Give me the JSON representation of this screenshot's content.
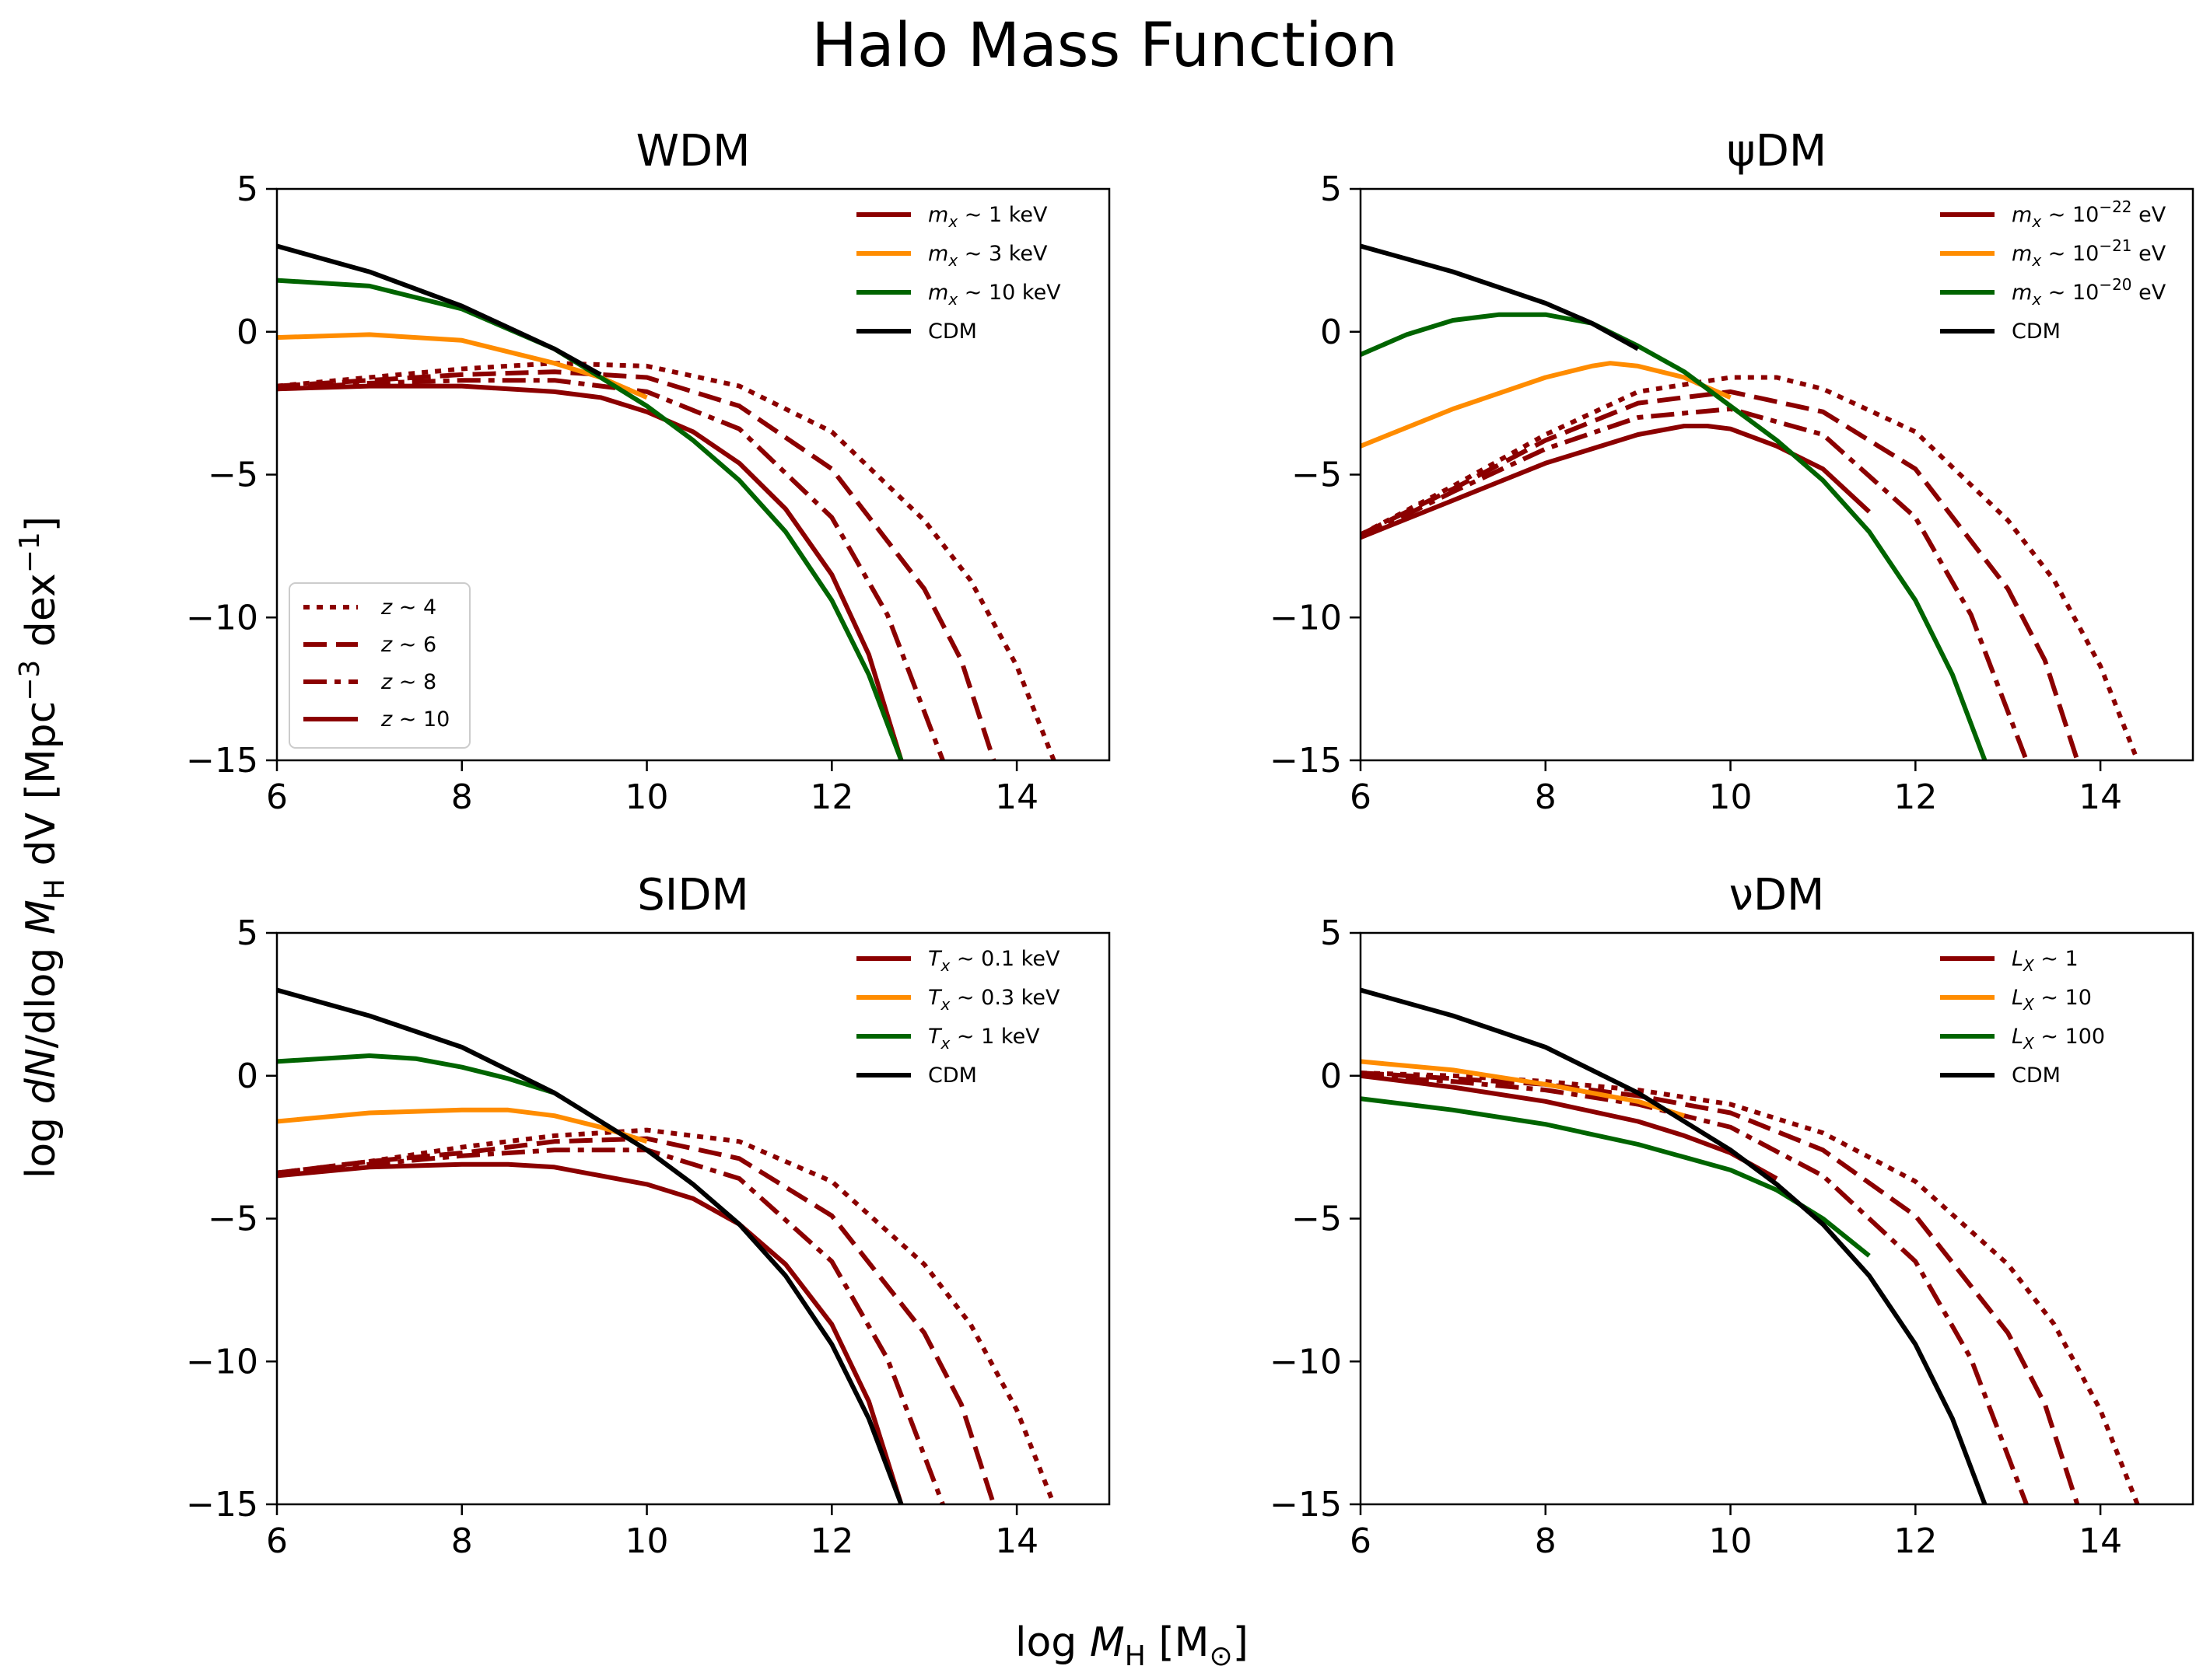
{
  "figure_title": "Halo Mass Function",
  "ylabel": "log dN/dlog M_H dV [Mpc^-3 dex^-1]",
  "xlabel": "log M_H [M_⊙]",
  "colors": {
    "red": "#8b0000",
    "orange": "#ff8c00",
    "green": "#006400",
    "black": "#000000"
  },
  "chart_data": [
    {
      "type": "line",
      "title": "WDM",
      "xlim": [
        6,
        15
      ],
      "ylim": [
        -15,
        5
      ],
      "xticks": [
        "6",
        "8",
        "10",
        "12",
        "14"
      ],
      "yticks": [
        "5",
        "0",
        "−5",
        "−10",
        "−15"
      ],
      "legend_placement": "upper right",
      "legend": [
        "m_x ~ 1 keV",
        "m_x ~ 3 keV",
        "m_x ~ 10 keV",
        "CDM"
      ],
      "redshift_legend_placement": "lower left",
      "redshift_legend": [
        "z ~ 4",
        "z ~ 6",
        "z ~ 8",
        "z ~ 10"
      ],
      "series": [
        {
          "name": "m_x ~ 1 keV",
          "z": "4",
          "color": "red",
          "style": "dotted",
          "x": [
            6,
            7,
            8,
            9,
            10,
            11,
            12,
            13,
            13.5,
            14,
            14.4
          ],
          "y": [
            -1.9,
            -1.6,
            -1.3,
            -1.1,
            -1.2,
            -1.9,
            -3.5,
            -6.6,
            -8.7,
            -11.7,
            -15
          ]
        },
        {
          "name": "m_x ~ 1 keV",
          "z": "6",
          "color": "red",
          "style": "dashed",
          "x": [
            6,
            7,
            8,
            9,
            10,
            11,
            12,
            13,
            13.4,
            13.75
          ],
          "y": [
            -1.9,
            -1.7,
            -1.5,
            -1.4,
            -1.6,
            -2.6,
            -4.8,
            -9.0,
            -11.5,
            -15
          ]
        },
        {
          "name": "m_x ~ 1 keV",
          "z": "8",
          "color": "red",
          "style": "dashdot",
          "x": [
            6,
            7,
            8,
            9,
            10,
            11,
            12,
            12.6,
            13.2
          ],
          "y": [
            -2.0,
            -1.8,
            -1.7,
            -1.7,
            -2.1,
            -3.4,
            -6.5,
            -9.9,
            -15
          ]
        },
        {
          "name": "m_x ~ 1 keV",
          "z": "10",
          "color": "red",
          "style": "solid",
          "x": [
            6,
            7,
            8,
            9,
            9.5,
            10,
            10.5,
            11,
            11.5,
            12,
            12.4,
            12.75
          ],
          "y": [
            -2.0,
            -1.9,
            -1.9,
            -2.1,
            -2.3,
            -2.8,
            -3.5,
            -4.6,
            -6.2,
            -8.5,
            -11.3,
            -15
          ]
        },
        {
          "name": "m_x ~ 3 keV",
          "z": "10",
          "color": "orange",
          "style": "solid",
          "x": [
            6,
            7,
            8,
            9,
            9.5,
            10
          ],
          "y": [
            -0.2,
            -0.1,
            -0.3,
            -1.1,
            -1.6,
            -2.3
          ]
        },
        {
          "name": "m_x ~ 10 keV",
          "z": "10",
          "color": "green",
          "style": "solid",
          "x": [
            6,
            7,
            8,
            9,
            10,
            10.5,
            11,
            11.5,
            12,
            12.4,
            12.75
          ],
          "y": [
            1.8,
            1.6,
            0.8,
            -0.6,
            -2.6,
            -3.8,
            -5.2,
            -7.0,
            -9.4,
            -12.0,
            -15
          ]
        },
        {
          "name": "CDM",
          "z": "10",
          "color": "black",
          "style": "solid",
          "x": [
            6,
            7,
            8,
            9,
            9.5
          ],
          "y": [
            3.0,
            2.1,
            0.9,
            -0.6,
            -1.5
          ]
        }
      ]
    },
    {
      "type": "line",
      "title": "ψDM",
      "xlim": [
        6,
        15
      ],
      "ylim": [
        -15,
        5
      ],
      "xticks": [
        "6",
        "8",
        "10",
        "12",
        "14"
      ],
      "yticks": [
        "5",
        "0",
        "−5",
        "−10",
        "−15"
      ],
      "legend_placement": "upper right",
      "legend": [
        "m_x ~ 10^-22 eV",
        "m_x ~ 10^-21 eV",
        "m_x ~ 10^-20 eV",
        "CDM"
      ],
      "series": [
        {
          "name": "m_x ~ 10^-22 eV",
          "z": "4",
          "color": "red",
          "style": "dotted",
          "x": [
            6,
            7,
            8,
            9,
            10,
            10.5,
            11,
            12,
            13,
            13.5,
            14,
            14.4
          ],
          "y": [
            -7.1,
            -5.4,
            -3.6,
            -2.1,
            -1.6,
            -1.6,
            -2.0,
            -3.5,
            -6.6,
            -8.7,
            -11.7,
            -15
          ]
        },
        {
          "name": "m_x ~ 10^-22 eV",
          "z": "6",
          "color": "red",
          "style": "dashed",
          "x": [
            6,
            7,
            8,
            9,
            10,
            11,
            12,
            13,
            13.4,
            13.75
          ],
          "y": [
            -7.1,
            -5.5,
            -3.8,
            -2.5,
            -2.1,
            -2.8,
            -4.8,
            -9.0,
            -11.5,
            -15
          ]
        },
        {
          "name": "m_x ~ 10^-22 eV",
          "z": "8",
          "color": "red",
          "style": "dashdot",
          "x": [
            6,
            7,
            8,
            9,
            10,
            11,
            12,
            12.6,
            13.2
          ],
          "y": [
            -7.2,
            -5.6,
            -4.1,
            -3.0,
            -2.7,
            -3.6,
            -6.5,
            -9.9,
            -15
          ]
        },
        {
          "name": "m_x ~ 10^-22 eV",
          "z": "10",
          "color": "red",
          "style": "solid",
          "x": [
            6,
            7,
            8,
            9,
            9.5,
            9.75,
            10,
            10.5,
            11,
            11.5
          ],
          "y": [
            -7.2,
            -5.9,
            -4.6,
            -3.6,
            -3.3,
            -3.3,
            -3.4,
            -4.0,
            -4.8,
            -6.3
          ]
        },
        {
          "name": "m_x ~ 10^-21 eV",
          "z": "10",
          "color": "orange",
          "style": "solid",
          "x": [
            6,
            7,
            8,
            8.5,
            8.7,
            9,
            9.5,
            10
          ],
          "y": [
            -4.0,
            -2.7,
            -1.6,
            -1.2,
            -1.1,
            -1.2,
            -1.6,
            -2.3
          ]
        },
        {
          "name": "m_x ~ 10^-20 eV",
          "z": "10",
          "color": "green",
          "style": "solid",
          "x": [
            6,
            6.5,
            7,
            7.5,
            8,
            8.5,
            9,
            9.5,
            10,
            10.5,
            11,
            11.5,
            12,
            12.4,
            12.75
          ],
          "y": [
            -0.8,
            -0.1,
            0.4,
            0.6,
            0.6,
            0.3,
            -0.5,
            -1.4,
            -2.6,
            -3.8,
            -5.2,
            -7.0,
            -9.4,
            -12.0,
            -15
          ]
        },
        {
          "name": "CDM",
          "z": "10",
          "color": "black",
          "style": "solid",
          "x": [
            6,
            7,
            8,
            8.5,
            9
          ],
          "y": [
            3.0,
            2.1,
            1.0,
            0.3,
            -0.6
          ]
        }
      ]
    },
    {
      "type": "line",
      "title": "SIDM",
      "xlim": [
        6,
        15
      ],
      "ylim": [
        -15,
        5
      ],
      "xticks": [
        "6",
        "8",
        "10",
        "12",
        "14"
      ],
      "yticks": [
        "5",
        "0",
        "−5",
        "−10",
        "−15"
      ],
      "legend_placement": "upper right",
      "legend": [
        "T_x ~ 0.1 keV",
        "T_x ~ 0.3 keV",
        "T_x ~ 1 keV",
        "CDM"
      ],
      "series": [
        {
          "name": "T_x ~ 0.1 keV",
          "z": "4",
          "color": "red",
          "style": "dotted",
          "x": [
            6,
            7,
            8,
            9,
            10,
            11,
            12,
            13,
            13.5,
            14,
            14.4
          ],
          "y": [
            -3.4,
            -3.0,
            -2.5,
            -2.1,
            -1.9,
            -2.3,
            -3.7,
            -6.6,
            -8.7,
            -11.7,
            -15
          ]
        },
        {
          "name": "T_x ~ 0.1 keV",
          "z": "6",
          "color": "red",
          "style": "dashed",
          "x": [
            6,
            7,
            8,
            9,
            10,
            11,
            12,
            13,
            13.4,
            13.75
          ],
          "y": [
            -3.4,
            -3.0,
            -2.7,
            -2.3,
            -2.2,
            -2.9,
            -4.9,
            -9.0,
            -11.5,
            -15
          ]
        },
        {
          "name": "T_x ~ 0.1 keV",
          "z": "8",
          "color": "red",
          "style": "dashdot",
          "x": [
            6,
            7,
            8,
            9,
            10,
            11,
            12,
            12.6,
            13.2
          ],
          "y": [
            -3.4,
            -3.1,
            -2.8,
            -2.6,
            -2.6,
            -3.6,
            -6.5,
            -9.9,
            -15
          ]
        },
        {
          "name": "T_x ~ 0.1 keV",
          "z": "10",
          "color": "red",
          "style": "solid",
          "x": [
            6,
            7,
            8,
            8.5,
            9,
            10,
            10.5,
            11,
            11.5,
            12,
            12.4,
            12.75
          ],
          "y": [
            -3.5,
            -3.2,
            -3.1,
            -3.1,
            -3.2,
            -3.8,
            -4.3,
            -5.2,
            -6.6,
            -8.7,
            -11.4,
            -15
          ]
        },
        {
          "name": "T_x ~ 0.3 keV",
          "z": "10",
          "color": "orange",
          "style": "solid",
          "x": [
            6,
            7,
            8,
            8.5,
            9,
            9.5,
            10
          ],
          "y": [
            -1.6,
            -1.3,
            -1.2,
            -1.2,
            -1.4,
            -1.8,
            -2.3
          ]
        },
        {
          "name": "T_x ~ 1 keV",
          "z": "10",
          "color": "green",
          "style": "solid",
          "x": [
            6,
            7,
            7.5,
            8,
            8.5,
            9
          ],
          "y": [
            0.5,
            0.7,
            0.6,
            0.3,
            -0.1,
            -0.6
          ]
        },
        {
          "name": "CDM",
          "z": "10",
          "color": "black",
          "style": "solid",
          "x": [
            6,
            7,
            8,
            9,
            10,
            10.5,
            11,
            11.5,
            12,
            12.4,
            12.75
          ],
          "y": [
            3.0,
            2.1,
            1.0,
            -0.6,
            -2.6,
            -3.8,
            -5.2,
            -7.0,
            -9.4,
            -12.0,
            -15
          ]
        }
      ]
    },
    {
      "type": "line",
      "title": "νDM",
      "xlim": [
        6,
        15
      ],
      "ylim": [
        -15,
        5
      ],
      "xticks": [
        "6",
        "8",
        "10",
        "12",
        "14"
      ],
      "yticks": [
        "5",
        "0",
        "−5",
        "−10",
        "−15"
      ],
      "legend_placement": "upper right",
      "legend": [
        "L_X ~ 1",
        "L_X ~ 10",
        "L_X ~ 100",
        "CDM"
      ],
      "series": [
        {
          "name": "L_X ~ 1",
          "z": "4",
          "color": "red",
          "style": "dotted",
          "x": [
            6,
            7,
            8,
            9,
            10,
            11,
            12,
            13,
            13.5,
            14,
            14.4
          ],
          "y": [
            0.1,
            0.0,
            -0.2,
            -0.5,
            -1.0,
            -2.0,
            -3.7,
            -6.6,
            -8.7,
            -11.7,
            -15
          ]
        },
        {
          "name": "L_X ~ 1",
          "z": "6",
          "color": "red",
          "style": "dashed",
          "x": [
            6,
            7,
            8,
            9,
            10,
            11,
            12,
            13,
            13.4,
            13.75
          ],
          "y": [
            0.1,
            -0.1,
            -0.3,
            -0.7,
            -1.3,
            -2.6,
            -4.9,
            -9.0,
            -11.5,
            -15
          ]
        },
        {
          "name": "L_X ~ 1",
          "z": "8",
          "color": "red",
          "style": "dashdot",
          "x": [
            6,
            7,
            8,
            9,
            10,
            11,
            12,
            12.6,
            13.2
          ],
          "y": [
            0.0,
            -0.2,
            -0.5,
            -1.0,
            -1.8,
            -3.5,
            -6.5,
            -9.9,
            -15
          ]
        },
        {
          "name": "L_X ~ 1",
          "z": "10",
          "color": "red",
          "style": "solid",
          "x": [
            6,
            7,
            8,
            9,
            9.5,
            10,
            10.5
          ],
          "y": [
            0.0,
            -0.4,
            -0.9,
            -1.6,
            -2.1,
            -2.7,
            -3.6
          ]
        },
        {
          "name": "L_X ~ 10",
          "z": "10",
          "color": "orange",
          "style": "solid",
          "x": [
            6,
            7,
            8,
            9,
            9.5
          ],
          "y": [
            0.5,
            0.2,
            -0.3,
            -0.9,
            -1.4
          ]
        },
        {
          "name": "L_X ~ 100",
          "z": "10",
          "color": "green",
          "style": "solid",
          "x": [
            6,
            7,
            8,
            9,
            10,
            10.5,
            11,
            11.5
          ],
          "y": [
            -0.8,
            -1.2,
            -1.7,
            -2.4,
            -3.3,
            -4.0,
            -5.0,
            -6.3
          ]
        },
        {
          "name": "CDM",
          "z": "10",
          "color": "black",
          "style": "solid",
          "x": [
            6,
            7,
            8,
            9,
            10,
            10.5,
            11,
            11.5,
            12,
            12.4,
            12.75
          ],
          "y": [
            3.0,
            2.1,
            1.0,
            -0.6,
            -2.6,
            -3.8,
            -5.2,
            -7.0,
            -9.4,
            -12.0,
            -15
          ]
        }
      ]
    }
  ]
}
